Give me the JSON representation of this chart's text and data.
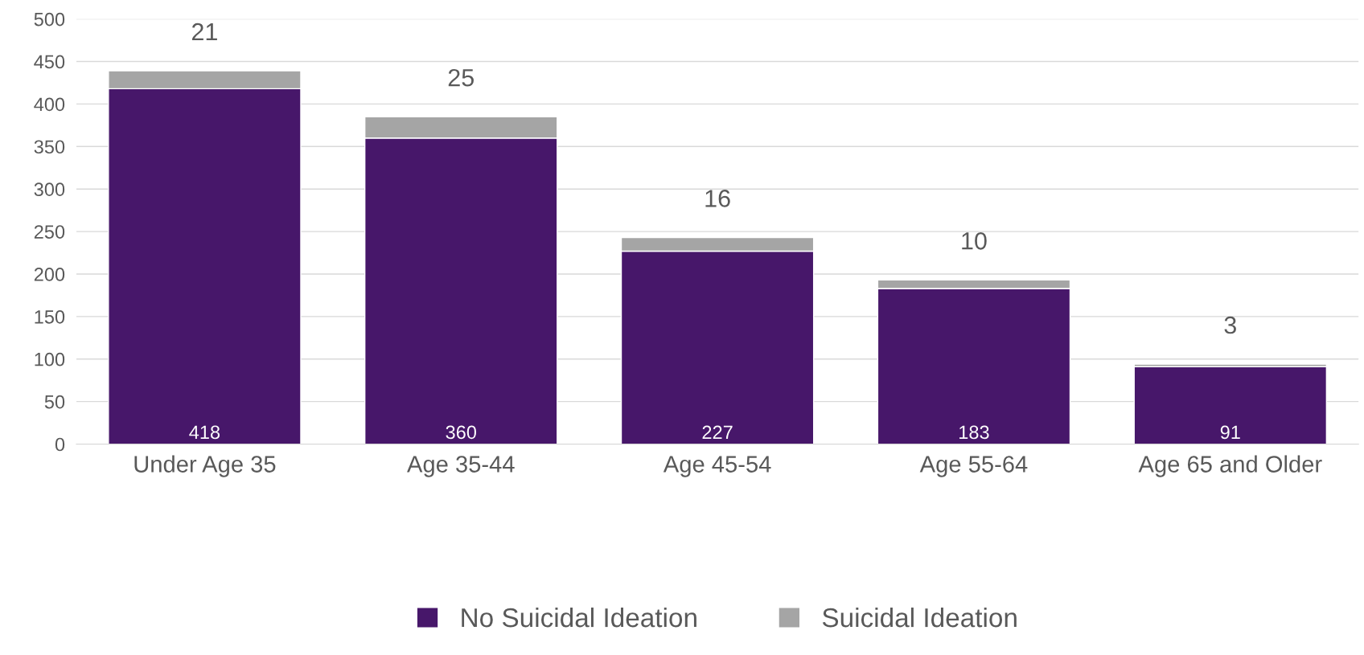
{
  "chart_data": {
    "type": "bar",
    "stacked": true,
    "categories": [
      "Under Age 35",
      "Age 35-44",
      "Age 45-54",
      "Age 55-64",
      "Age 65 and Older"
    ],
    "series": [
      {
        "name": "No Suicidal Ideation",
        "color": "#47176a",
        "values": [
          418,
          360,
          227,
          183,
          91
        ]
      },
      {
        "name": "Suicidal Ideation",
        "color": "#a5a5a5",
        "values": [
          21,
          25,
          16,
          10,
          3
        ]
      }
    ],
    "ylim": [
      0,
      500
    ],
    "yticks": [
      0,
      50,
      100,
      150,
      200,
      250,
      300,
      350,
      400,
      450,
      500
    ],
    "grid": "y",
    "legend": "bottom",
    "data_labels": true
  }
}
